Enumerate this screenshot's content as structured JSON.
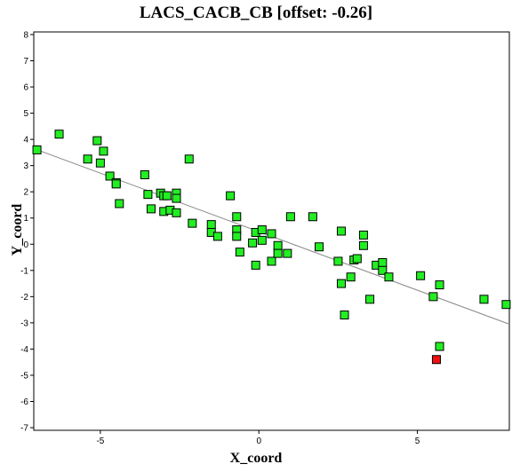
{
  "chart_data": {
    "type": "scatter",
    "title": "LACS_CACB_CB [offset: -0.26]",
    "xlabel": "X_coord",
    "ylabel": "Y_coord",
    "xlim": [
      -7.1,
      7.9
    ],
    "ylim": [
      -7.1,
      8.1
    ],
    "xticks": [
      -5,
      0,
      5
    ],
    "yticks": [
      -7,
      -6,
      -5,
      -4,
      -3,
      -2,
      -1,
      0,
      1,
      2,
      3,
      4,
      5,
      6,
      7,
      8
    ],
    "grid": false,
    "colors": {
      "point": "#22ee22",
      "outlier": "#ee1111",
      "border": "#000000",
      "fit_line": "#888888"
    },
    "fit_line": {
      "x": [
        -7.1,
        7.9
      ],
      "y": [
        3.65,
        -3.05
      ]
    },
    "points": [
      {
        "x": -7.0,
        "y": 3.6
      },
      {
        "x": -6.3,
        "y": 4.2
      },
      {
        "x": -5.1,
        "y": 3.95
      },
      {
        "x": -5.4,
        "y": 3.25
      },
      {
        "x": -5.0,
        "y": 3.1
      },
      {
        "x": -4.9,
        "y": 3.55
      },
      {
        "x": -4.7,
        "y": 2.6
      },
      {
        "x": -4.5,
        "y": 2.35
      },
      {
        "x": -4.5,
        "y": 2.3
      },
      {
        "x": -4.4,
        "y": 1.55
      },
      {
        "x": -3.6,
        "y": 2.65
      },
      {
        "x": -3.5,
        "y": 1.9
      },
      {
        "x": -3.4,
        "y": 1.35
      },
      {
        "x": -3.1,
        "y": 1.95
      },
      {
        "x": -3.0,
        "y": 1.85
      },
      {
        "x": -3.0,
        "y": 1.25
      },
      {
        "x": -2.9,
        "y": 1.85
      },
      {
        "x": -2.8,
        "y": 1.3
      },
      {
        "x": -2.6,
        "y": 1.95
      },
      {
        "x": -2.6,
        "y": 1.75
      },
      {
        "x": -2.6,
        "y": 1.2
      },
      {
        "x": -2.2,
        "y": 3.25
      },
      {
        "x": -2.1,
        "y": 0.8
      },
      {
        "x": -1.5,
        "y": 0.75
      },
      {
        "x": -1.5,
        "y": 0.45
      },
      {
        "x": -1.3,
        "y": 0.3
      },
      {
        "x": -0.9,
        "y": 1.85
      },
      {
        "x": -0.7,
        "y": 1.05
      },
      {
        "x": -0.7,
        "y": 0.55
      },
      {
        "x": -0.7,
        "y": 0.3
      },
      {
        "x": -0.6,
        "y": -0.3
      },
      {
        "x": -0.2,
        "y": 0.05
      },
      {
        "x": -0.1,
        "y": 0.45
      },
      {
        "x": -0.1,
        "y": -0.8
      },
      {
        "x": 0.1,
        "y": 0.55
      },
      {
        "x": 0.1,
        "y": 0.15
      },
      {
        "x": 0.4,
        "y": 0.4
      },
      {
        "x": 0.4,
        "y": -0.65
      },
      {
        "x": 0.6,
        "y": -0.05
      },
      {
        "x": 0.6,
        "y": -0.35
      },
      {
        "x": 0.9,
        "y": -0.35
      },
      {
        "x": 1.0,
        "y": 1.05
      },
      {
        "x": 1.7,
        "y": 1.05
      },
      {
        "x": 1.9,
        "y": -0.1
      },
      {
        "x": 2.5,
        "y": -0.65
      },
      {
        "x": 2.6,
        "y": 0.5
      },
      {
        "x": 2.6,
        "y": -1.5
      },
      {
        "x": 2.7,
        "y": -2.7
      },
      {
        "x": 2.9,
        "y": -1.25
      },
      {
        "x": 3.0,
        "y": -0.6
      },
      {
        "x": 3.1,
        "y": -0.55
      },
      {
        "x": 3.3,
        "y": 0.35
      },
      {
        "x": 3.3,
        "y": -0.05
      },
      {
        "x": 3.5,
        "y": -2.1
      },
      {
        "x": 3.7,
        "y": -0.8
      },
      {
        "x": 3.9,
        "y": -0.7
      },
      {
        "x": 3.9,
        "y": -1.0
      },
      {
        "x": 4.1,
        "y": -1.25
      },
      {
        "x": 5.1,
        "y": -1.2
      },
      {
        "x": 5.5,
        "y": -2.0
      },
      {
        "x": 5.7,
        "y": -3.9
      },
      {
        "x": 5.7,
        "y": -1.55
      },
      {
        "x": 7.1,
        "y": -2.1
      },
      {
        "x": 7.8,
        "y": -2.3
      }
    ],
    "outliers": [
      {
        "x": 5.6,
        "y": -4.4
      }
    ]
  }
}
